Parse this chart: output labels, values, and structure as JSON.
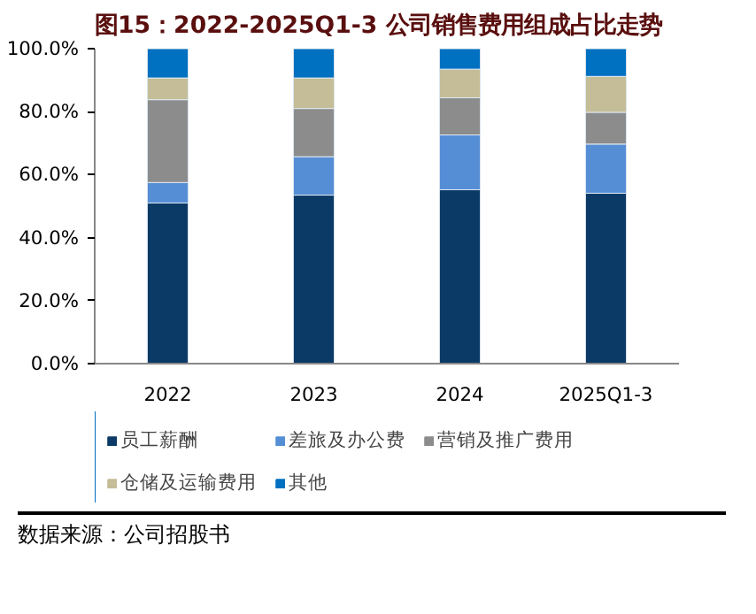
{
  "chart_data": {
    "type": "bar",
    "stacked": true,
    "title": "图15：2022-2025Q1-3 公司销售费用组成占比走势",
    "categories": [
      "2022",
      "2023",
      "2024",
      "2025Q1-3"
    ],
    "series": [
      {
        "name": "员工薪酬",
        "color": "#0b3a66",
        "values": [
          51.0,
          53.5,
          55.2,
          54.1
        ]
      },
      {
        "name": "差旅及办公费",
        "color": "#558ed5",
        "values": [
          6.5,
          12.2,
          17.4,
          15.6
        ]
      },
      {
        "name": "营销及推广费用",
        "color": "#8c8c8c",
        "values": [
          26.3,
          15.3,
          11.8,
          10.1
        ]
      },
      {
        "name": "仓储及运输费用",
        "color": "#c4bd97",
        "values": [
          6.9,
          9.7,
          9.1,
          11.4
        ]
      },
      {
        "name": "其他",
        "color": "#0070c0",
        "values": [
          9.3,
          9.3,
          6.5,
          8.8
        ]
      }
    ],
    "ylim": [
      0,
      100
    ],
    "yticks": [
      {
        "value": 0,
        "label": "0.0%"
      },
      {
        "value": 20,
        "label": "20.0%"
      },
      {
        "value": 40,
        "label": "40.0%"
      },
      {
        "value": 60,
        "label": "60.0%"
      },
      {
        "value": 80,
        "label": "80.0%"
      },
      {
        "value": 100,
        "label": "100.0%"
      }
    ],
    "grid": false,
    "legend": "bottom",
    "annotations": [
      "数据来源：公司招股书"
    ]
  }
}
